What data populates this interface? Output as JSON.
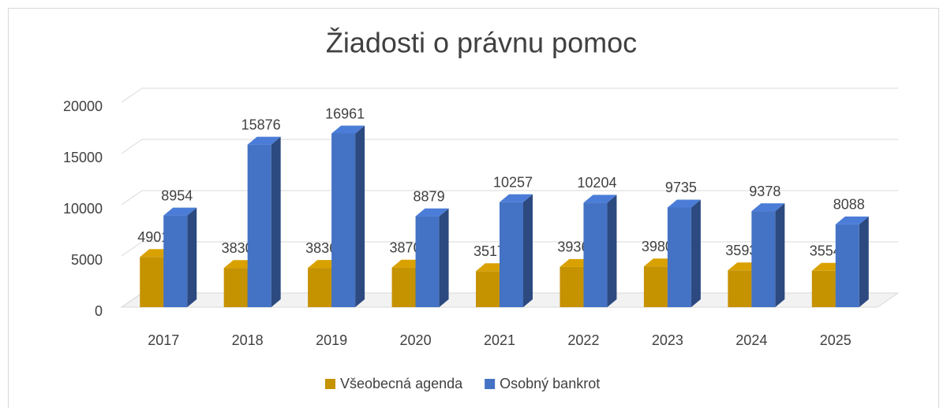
{
  "chart_data": {
    "type": "bar3d",
    "title": "Žiadosti o právnu pomoc",
    "categories": [
      "2017",
      "2018",
      "2019",
      "2020",
      "2021",
      "2022",
      "2023",
      "2024",
      "2025"
    ],
    "series": [
      {
        "name": "Všeobecná agenda",
        "color": "#c59200",
        "values": [
          4901,
          3830,
          3836,
          3870,
          3517,
          3936,
          3980,
          3593,
          3554
        ]
      },
      {
        "name": "Osobný bankrot",
        "color": "#4472c4",
        "values": [
          8954,
          15876,
          16961,
          8879,
          10257,
          10204,
          9735,
          9378,
          8088
        ]
      }
    ],
    "ylim": [
      0,
      20000
    ],
    "yticks": [
      0,
      5000,
      10000,
      15000,
      20000
    ],
    "grid": true,
    "legend": "bottom"
  }
}
